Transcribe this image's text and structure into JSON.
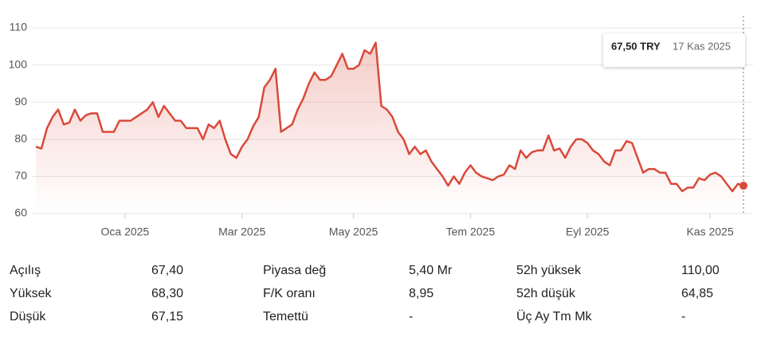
{
  "chart_data": {
    "type": "line",
    "categories": [
      null,
      null,
      null,
      null,
      null,
      null,
      null,
      null,
      null,
      null,
      null,
      null,
      null,
      null,
      null,
      null,
      "Oca 2025",
      null,
      null,
      null,
      null,
      null,
      null,
      null,
      null,
      null,
      null,
      null,
      null,
      null,
      null,
      null,
      null,
      null,
      null,
      null,
      null,
      "Mar 2025",
      null,
      null,
      null,
      null,
      null,
      null,
      null,
      null,
      null,
      null,
      null,
      null,
      null,
      null,
      null,
      null,
      null,
      null,
      null,
      "May 2025",
      null,
      null,
      null,
      null,
      null,
      null,
      null,
      null,
      null,
      null,
      null,
      null,
      null,
      null,
      null,
      null,
      null,
      null,
      null,
      null,
      "Tem 2025",
      null,
      null,
      null,
      null,
      null,
      null,
      null,
      null,
      null,
      null,
      null,
      null,
      null,
      null,
      null,
      null,
      null,
      null,
      null,
      null,
      "Eyl 2025",
      null,
      null,
      null,
      null,
      null,
      null,
      null,
      null,
      null,
      null,
      null,
      null,
      null,
      null,
      null,
      null,
      null,
      null,
      null,
      null,
      null,
      "Kas 2025",
      null,
      null,
      null,
      null,
      null,
      null
    ],
    "values": [
      78,
      77.5,
      83,
      86,
      88,
      84,
      84.5,
      88,
      85,
      86.5,
      87,
      87,
      82,
      82,
      82,
      85,
      85,
      85,
      86,
      87,
      88,
      90,
      86,
      89,
      87,
      85,
      85,
      83,
      83,
      83,
      80,
      84,
      83,
      85,
      80,
      76,
      75,
      78,
      80,
      83.5,
      86,
      94,
      96,
      99,
      82,
      83,
      84,
      88,
      91,
      95,
      98,
      96,
      96,
      97,
      100,
      103,
      99,
      99,
      100,
      104,
      103,
      106,
      89,
      88,
      86,
      82,
      80,
      76,
      78,
      76,
      77,
      74,
      72,
      70,
      67.5,
      70,
      68,
      71,
      73,
      71,
      70,
      69.5,
      69,
      70,
      70.5,
      73,
      72,
      77,
      75,
      76.5,
      77,
      77,
      81,
      77,
      77.5,
      75,
      78,
      80,
      80,
      79,
      77,
      76,
      74,
      73,
      77,
      77,
      79.5,
      79,
      75,
      71,
      72,
      72,
      71,
      71,
      68,
      68,
      66,
      67,
      67,
      69.5,
      69,
      70.5,
      71,
      70,
      68,
      66,
      68,
      67.5
    ],
    "color": "#d9493a",
    "ylim": [
      60,
      110
    ],
    "yticks": [
      60,
      70,
      80,
      90,
      100,
      110
    ],
    "grid": true,
    "tooltip": {
      "price": "67,50 TRY",
      "date": "17 Kas 2025"
    }
  },
  "stats": [
    [
      {
        "label": "Açılış",
        "value": "67,40"
      },
      {
        "label": "Piyasa değ",
        "value": "5,40 Mr"
      },
      {
        "label": "52h yüksek",
        "value": "110,00"
      }
    ],
    [
      {
        "label": "Yüksek",
        "value": "68,30"
      },
      {
        "label": "F/K oranı",
        "value": "8,95"
      },
      {
        "label": "52h düşük",
        "value": "64,85"
      }
    ],
    [
      {
        "label": "Düşük",
        "value": "67,15"
      },
      {
        "label": "Temettü",
        "value": "-"
      },
      {
        "label": "Üç Ay Tm Mk",
        "value": "-"
      }
    ]
  ]
}
